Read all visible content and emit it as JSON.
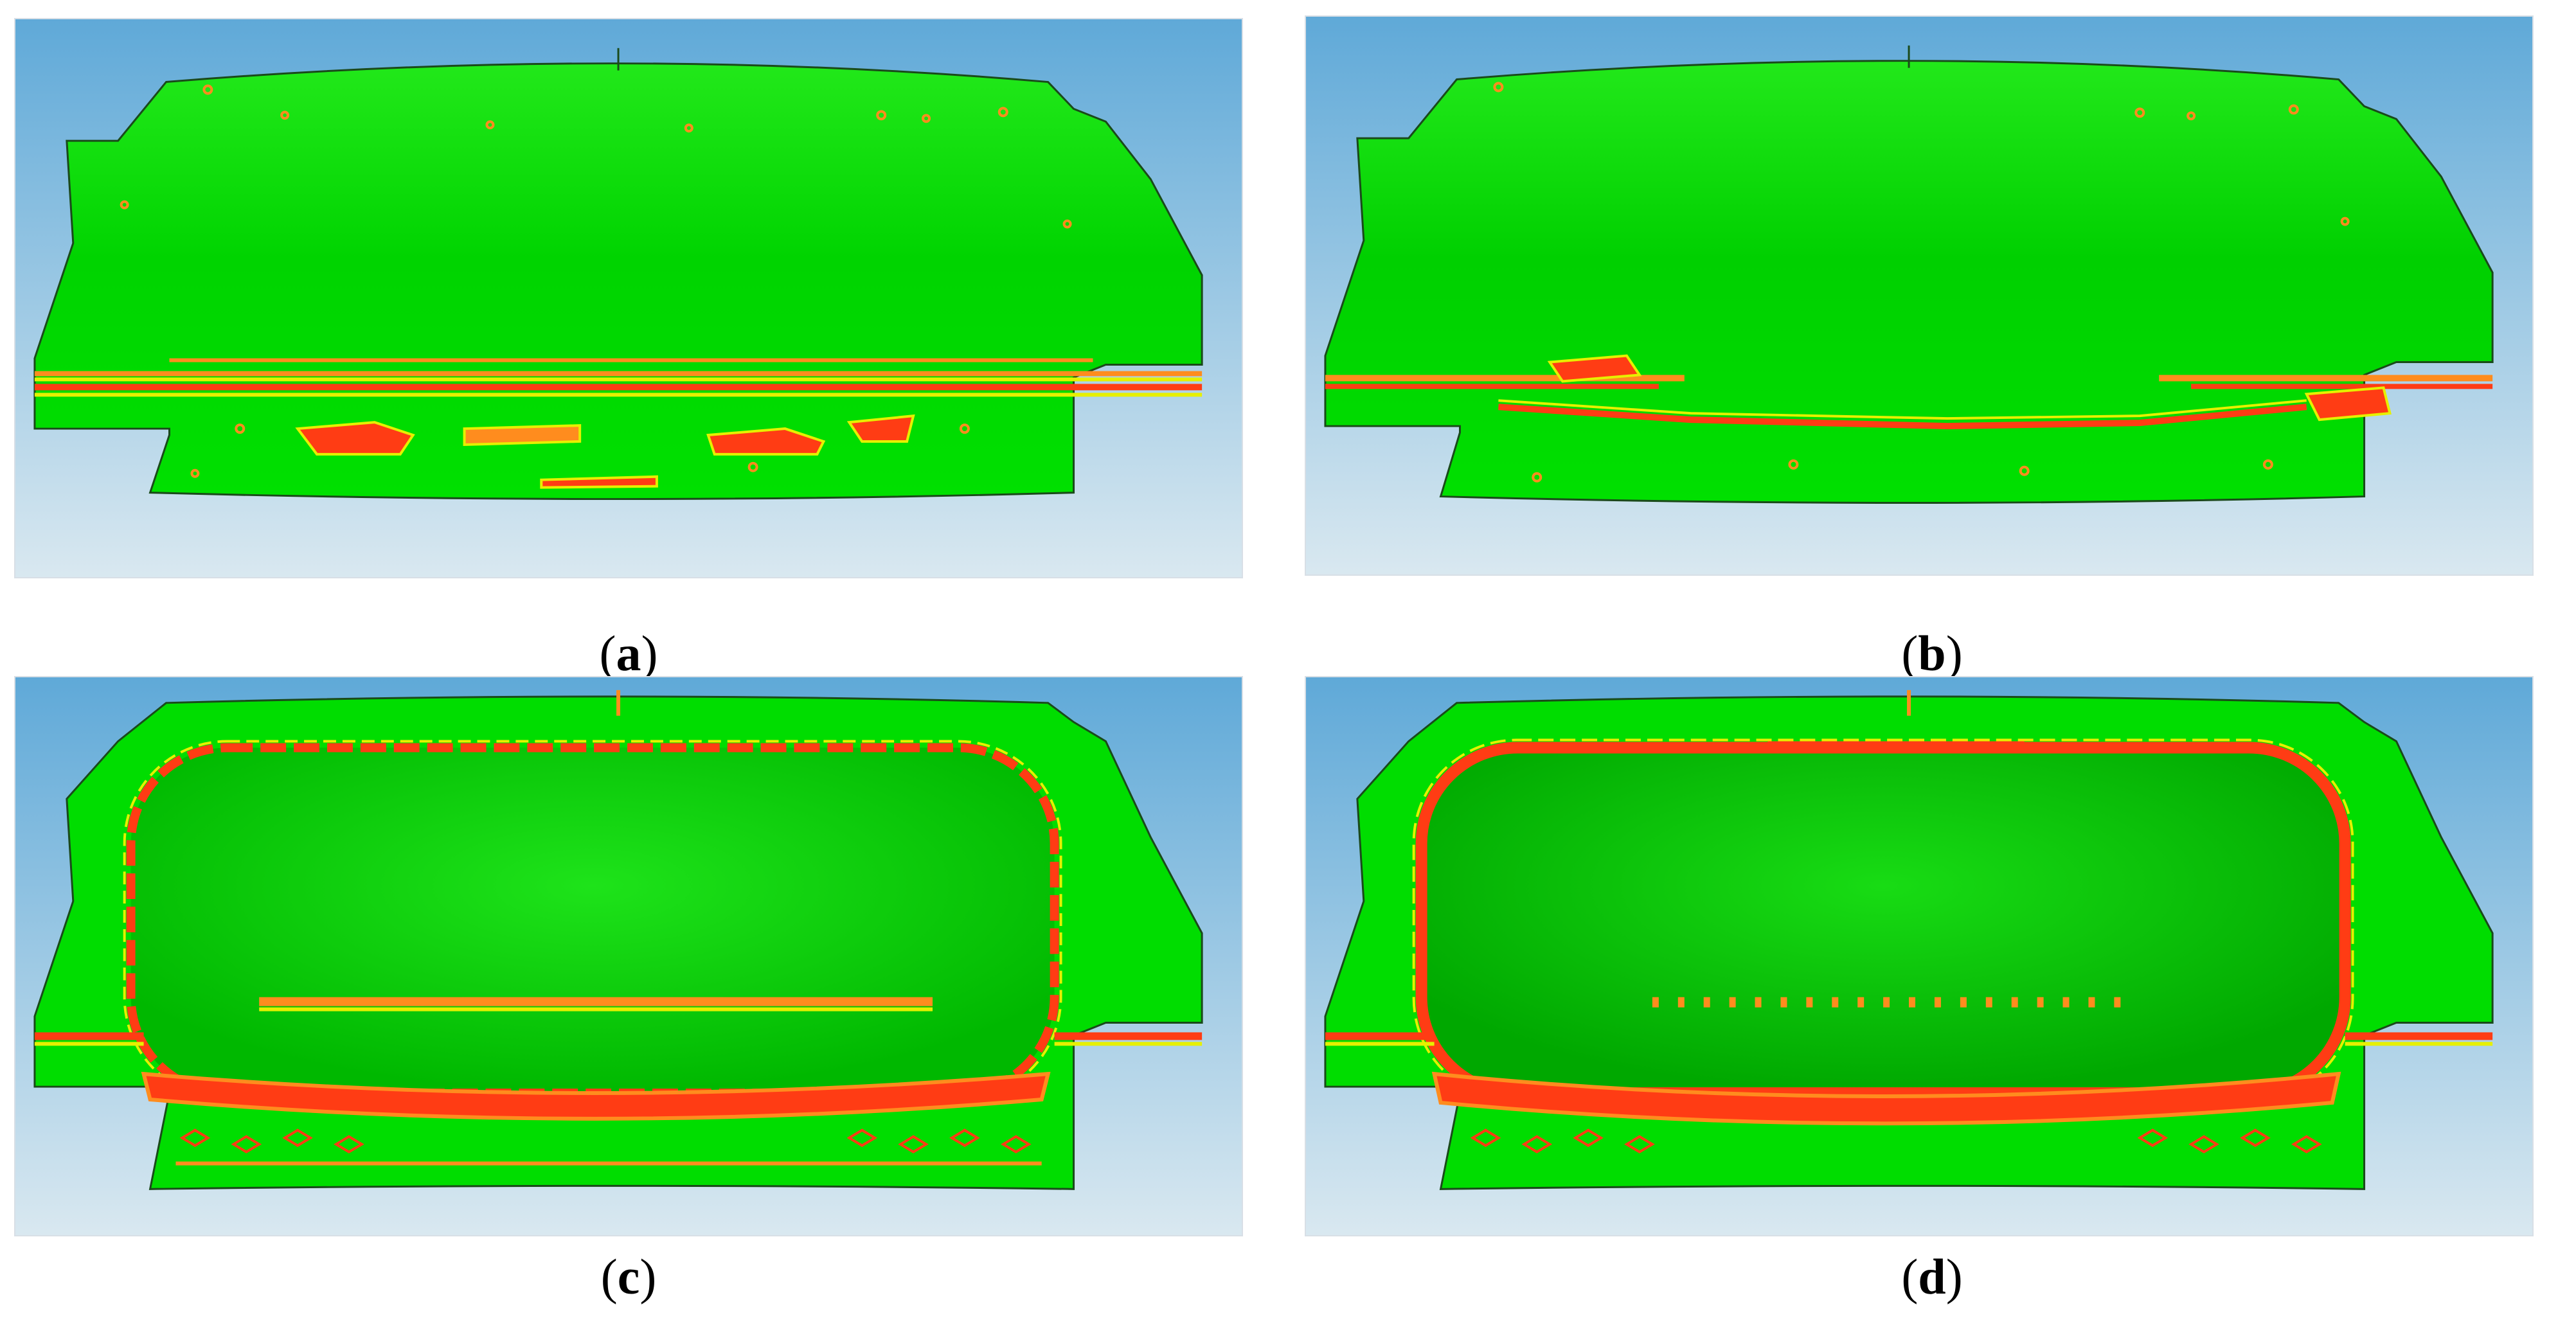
{
  "panels": [
    {
      "id": "a",
      "label": "a",
      "variant": "sparse-strain"
    },
    {
      "id": "b",
      "label": "b",
      "variant": "sparse-strain"
    },
    {
      "id": "c",
      "label": "c",
      "variant": "ring-strain"
    },
    {
      "id": "d",
      "label": "d",
      "variant": "ring-strain"
    }
  ],
  "colors": {
    "background_top": "#5fa9d8",
    "background_bottom": "#d9e8f0",
    "safe_green": "#00e600",
    "strain_red": "#ff3c14",
    "strain_orange": "#ff8c1e",
    "strain_yellow": "#e6f000",
    "edge_dark": "#1a4a1a"
  }
}
